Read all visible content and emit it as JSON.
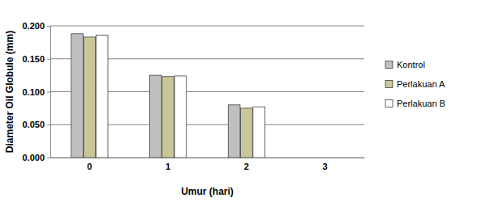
{
  "chart_data": {
    "type": "bar",
    "x_label": "Umur (hari)",
    "y_label": "Diameter Oil Globule (mm)",
    "categories": [
      "0",
      "1",
      "2",
      "3"
    ],
    "series": [
      {
        "name": "Kontrol",
        "color": "#bfbfbf",
        "values": [
          0.188,
          0.125,
          0.08,
          0.0
        ]
      },
      {
        "name": "Perlakuan A",
        "color": "#c9c79a",
        "values": [
          0.183,
          0.123,
          0.075,
          0.0
        ]
      },
      {
        "name": "Perlakuan B",
        "color": "#ffffff",
        "values": [
          0.186,
          0.124,
          0.077,
          0.0
        ]
      }
    ],
    "ylim": [
      0,
      0.2
    ],
    "yticks": [
      {
        "value": 0,
        "label": "0.000"
      },
      {
        "value": 0.05,
        "label": "0.050"
      },
      {
        "value": 0.1,
        "label": "0.100"
      },
      {
        "value": 0.15,
        "label": "0.150"
      },
      {
        "value": 0.2,
        "label": "0.200"
      }
    ],
    "grid": true,
    "legend": "right"
  }
}
